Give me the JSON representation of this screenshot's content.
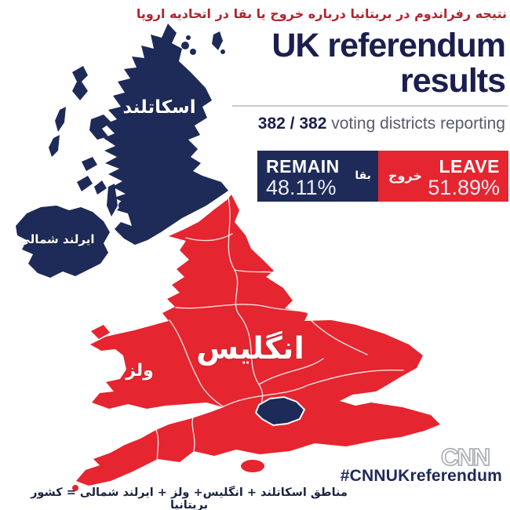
{
  "colors": {
    "navy": "#1e2a57",
    "red": "#e5252f",
    "title_navy": "#1b1f4e",
    "persian_red": "#b02430",
    "gray_text": "#565b6e",
    "divider": "#c8cbd2",
    "pct_text": "#e9ecf4",
    "logo_gray": "#aeb1b6",
    "hashtag_navy": "#1e2a58",
    "footer_navy": "#1c2340"
  },
  "header": {
    "persian_caption": "نتیجه رفراندوم در بریتانیا درباره خروج یا بقا در اتحادیه اروپا",
    "title_line1": "UK referendum",
    "title_line2": "results",
    "reporting_bold": "382 / 382",
    "reporting_rest": " voting districts reporting"
  },
  "results": {
    "remain": {
      "label": "REMAIN",
      "label_fa": "بقا",
      "pct": "48.11%",
      "share": 48.11
    },
    "leave": {
      "label": "LEAVE",
      "label_fa": "خروج",
      "pct": "51.89%",
      "share": 51.89
    }
  },
  "map": {
    "type": "choropleth",
    "labels": {
      "scotland": "اسکاتلند",
      "northern_ireland": "ایرلند شمالی",
      "england": "انگلیس",
      "wales": "ولز"
    },
    "regions": [
      {
        "name": "Scotland",
        "result": "remain"
      },
      {
        "name": "Northern Ireland",
        "result": "remain"
      },
      {
        "name": "England",
        "result": "leave"
      },
      {
        "name": "Wales",
        "result": "leave"
      },
      {
        "name": "London",
        "result": "remain"
      }
    ]
  },
  "footer": {
    "logo_text": "CNN",
    "hashtag": "#CNNUKreferendum",
    "persian_note": "مناطق اسکاتلند + انگلیس+ ولز + ایرلند شمالی = کشور بریتانیا"
  }
}
